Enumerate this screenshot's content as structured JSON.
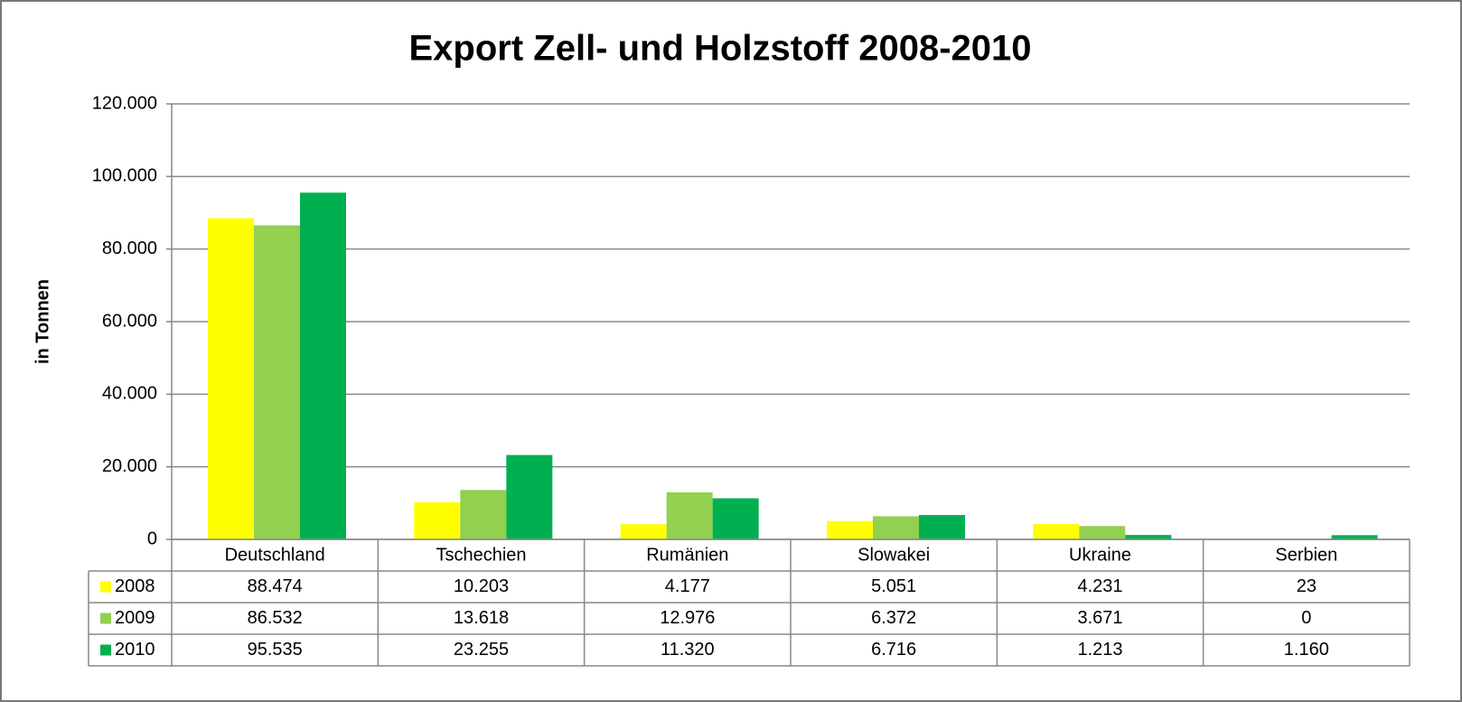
{
  "chart_data": {
    "type": "bar",
    "title": "Export Zell- und Holzstoff 2008-2010",
    "y_label": "in Tonnen",
    "categories": [
      "Deutschland",
      "Tschechien",
      "Rumänien",
      "Slowakei",
      "Ukraine",
      "Serbien"
    ],
    "series": [
      {
        "name": "2008",
        "color": "#ffff00",
        "values": [
          88474,
          10203,
          4177,
          5051,
          4231,
          23
        ],
        "value_labels": [
          "88.474",
          "10.203",
          "4.177",
          "5.051",
          "4.231",
          "23"
        ]
      },
      {
        "name": "2009",
        "color": "#92d050",
        "values": [
          86532,
          13618,
          12976,
          6372,
          3671,
          0
        ],
        "value_labels": [
          "86.532",
          "13.618",
          "12.976",
          "6.372",
          "3.671",
          "0"
        ]
      },
      {
        "name": "2010",
        "color": "#00b050",
        "values": [
          95535,
          23255,
          11320,
          6716,
          1213,
          1160
        ],
        "value_labels": [
          "95.535",
          "23.255",
          "11.320",
          "6.716",
          "1.213",
          "1.160"
        ]
      }
    ],
    "ylim": [
      0,
      120000
    ],
    "yticks": [
      0,
      {
        "value": 20000,
        "label": "20.000"
      },
      {
        "value": 40000,
        "label": "40.000"
      },
      {
        "value": 60000,
        "label": "60.000"
      },
      {
        "value": 80000,
        "label": "80.000"
      },
      {
        "value": 100000,
        "label": "100.000"
      },
      {
        "value": 120000,
        "label": "120.000"
      }
    ],
    "grid": true
  }
}
